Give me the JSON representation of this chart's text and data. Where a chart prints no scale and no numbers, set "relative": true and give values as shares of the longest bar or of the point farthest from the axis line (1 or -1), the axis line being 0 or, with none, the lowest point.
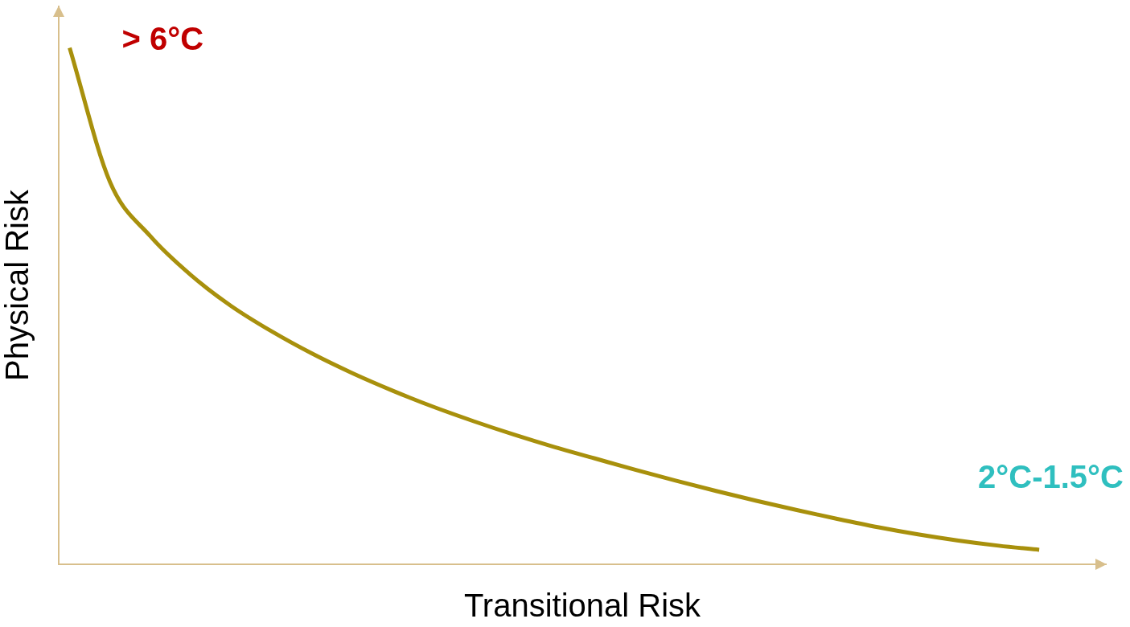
{
  "chart_data": {
    "type": "line",
    "relative": true,
    "xlabel": "Transitional Risk",
    "ylabel": "Physical Risk",
    "categories": [
      null,
      null,
      null,
      null,
      null,
      null,
      null,
      null,
      null,
      null,
      null,
      null,
      null,
      null,
      null,
      null,
      null,
      null,
      null,
      null,
      null,
      null,
      null,
      null,
      null
    ],
    "series": [
      {
        "color": "#a8900c",
        "values": [
          1,
          0.74,
          0.635,
          0.56,
          0.5,
          0.451,
          0.408,
          0.37,
          0.336,
          0.305,
          0.277,
          0.251,
          0.227,
          0.205,
          0.183,
          0.162,
          0.142,
          0.123,
          0.105,
          0.088,
          0.072,
          0.058,
          0.046,
          0.036,
          0.028
        ]
      }
    ],
    "annotations": [
      "> 6°C",
      "2°C-1.5°C"
    ],
    "marker": "none",
    "line_style": "solid",
    "grid": false,
    "legend": false
  }
}
